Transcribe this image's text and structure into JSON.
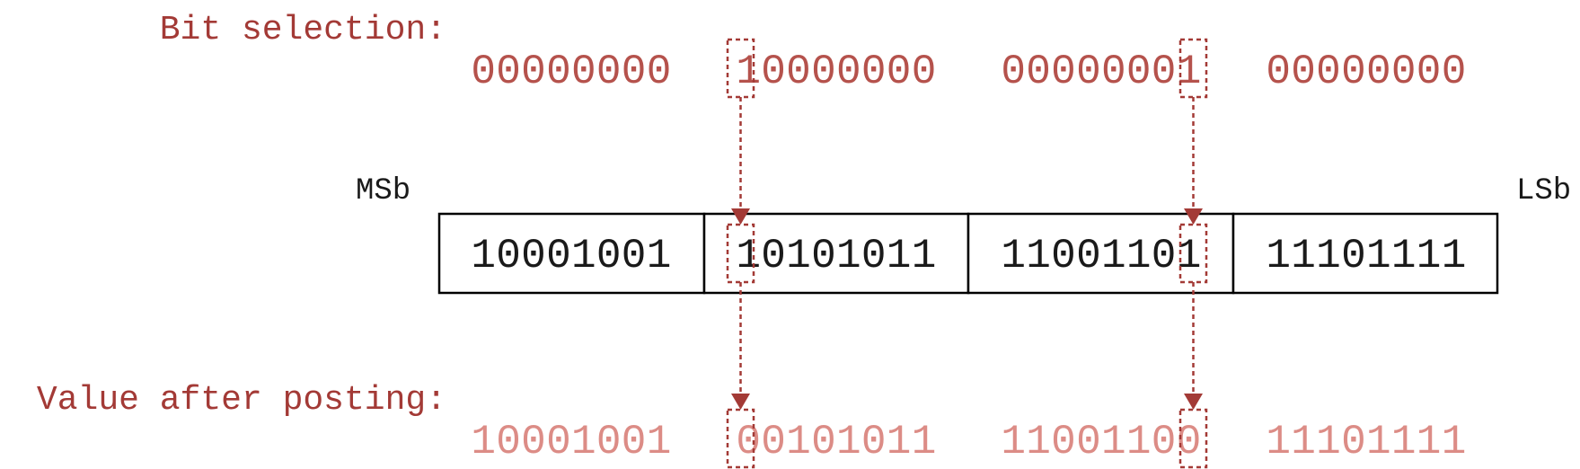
{
  "labels": {
    "bit_selection": "Bit selection:",
    "value_after_posting": "Value after posting:",
    "msb": "MSb",
    "lsb": "LSb"
  },
  "bit_selection_bytes": [
    "00000000",
    "10000000",
    "00000001",
    "00000000"
  ],
  "register_bytes": [
    "10001001",
    "10101011",
    "11001101",
    "11101111"
  ],
  "posted_bytes": [
    "10001001",
    "00101011",
    "11001100",
    "11101111"
  ],
  "highlights": [
    {
      "byte": 1,
      "bit": 0
    },
    {
      "byte": 2,
      "bit": 7
    }
  ],
  "colors": {
    "accent": "#a33a36",
    "selection_text": "#b5524c",
    "posted_text": "#dc8c86",
    "register_text": "#1a1a1a"
  }
}
